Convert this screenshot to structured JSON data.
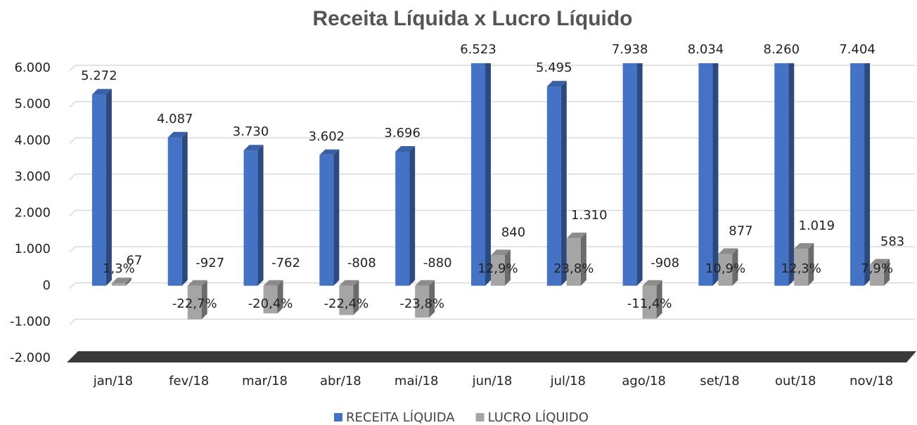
{
  "chart_data": {
    "type": "bar3d",
    "title": "Receita Líquida x Lucro Líquido",
    "categories": [
      "jan/18",
      "fev/18",
      "mar/18",
      "abr/18",
      "mai/18",
      "jun/18",
      "jul/18",
      "ago/18",
      "set/18",
      "out/18",
      "nov/18"
    ],
    "series": [
      {
        "name": "RECEITA LÍQUIDA",
        "color": "#4472c4",
        "values": [
          5272,
          4087,
          3730,
          3602,
          3696,
          6523,
          5495,
          7938,
          8034,
          8260,
          7404
        ],
        "value_labels": [
          "5.272",
          "4.087",
          "3.730",
          "3.602",
          "3.696",
          "6.523",
          "5.495",
          "7.938",
          "8.034",
          "8.260",
          "7.404"
        ]
      },
      {
        "name": "LUCRO LÍQUIDO",
        "color": "#a5a5a5",
        "values": [
          67,
          -927,
          -762,
          -808,
          -880,
          840,
          1310,
          -908,
          877,
          1019,
          583
        ],
        "value_labels": [
          "67",
          "-927",
          "-762",
          "-808",
          "-880",
          "840",
          "1.310",
          "-908",
          "877",
          "1.019",
          "583"
        ],
        "margins": [
          1.3,
          -22.7,
          -20.4,
          -22.4,
          -23.8,
          12.9,
          23.8,
          -11.4,
          10.9,
          12.3,
          7.9
        ],
        "margin_labels": [
          "1,3%",
          "-22,7%",
          "-20,4%",
          "-22,4%",
          "-23,8%",
          "12,9%",
          "23,8%",
          "-11,4%",
          "10,9%",
          "12,3%",
          "7,9%"
        ]
      }
    ],
    "ylim": [
      -2000,
      6000
    ],
    "yticks": [
      {
        "value": -2000,
        "label": "-2.000"
      },
      {
        "value": -1000,
        "label": "-1.000"
      },
      0,
      {
        "value": 1000,
        "label": "1.000"
      },
      {
        "value": 2000,
        "label": "2.000"
      },
      {
        "value": 3000,
        "label": "3.000"
      },
      {
        "value": 4000,
        "label": "4.000"
      },
      {
        "value": 5000,
        "label": "5.000"
      },
      {
        "value": 6000,
        "label": "6.000"
      }
    ],
    "grid": true,
    "legend": "bottom"
  }
}
